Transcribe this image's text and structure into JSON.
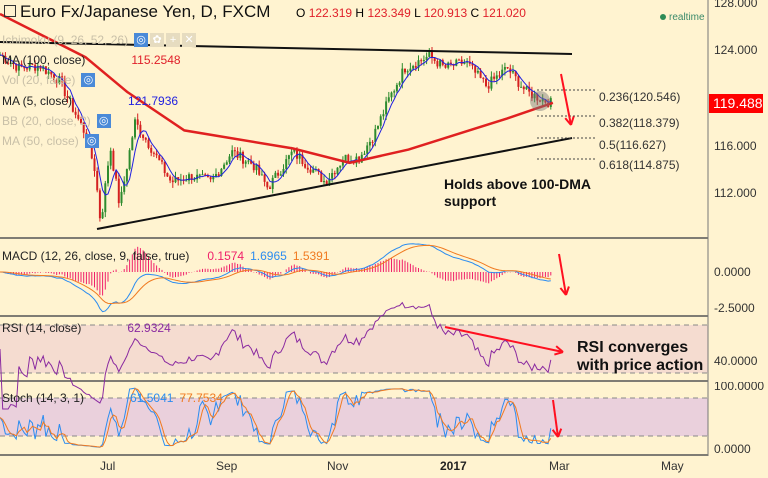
{
  "header": {
    "title": "Euro Fx/Japanese Yen, D, FXCM",
    "o_label": "O",
    "o": "122.319",
    "h_label": "H",
    "h": "123.349",
    "l_label": "L",
    "l": "120.913",
    "c_label": "C",
    "c": "121.020",
    "realtime": "realtime"
  },
  "indicators": {
    "ichimoku": "Ichimoku (9, 26, 52, 26)",
    "ma100": "MA (100, close)",
    "ma100_value": "115.2548",
    "vol": "Vol (20, false)",
    "ma5": "MA (5, close)",
    "ma5_value": "121.7936",
    "bb": "BB (20, close, 2)",
    "ma50": "MA (50, close)"
  },
  "price_axis": {
    "ticks": [
      "128.000",
      "124.000",
      "116.000",
      "112.000"
    ],
    "current": "119.488"
  },
  "fib": [
    "0.236(120.546)",
    "0.382(118.379)",
    "0.5(116.627)",
    "0.618(114.875)"
  ],
  "annotations": {
    "dma_line1": "Holds above 100-DMA",
    "dma_line2": "support",
    "rsi_line1": "RSI converges",
    "rsi_line2": "with price action"
  },
  "macd": {
    "label": "MACD (12, 26, close, 9, false, true)",
    "hist": "0.1574",
    "macd": "1.6965",
    "signal": "1.5391",
    "ticks": [
      "0.0000",
      "-2.5000"
    ]
  },
  "rsi": {
    "label": "RSI (14, close)",
    "value": "62.9324",
    "ticks": [
      "40.0000"
    ]
  },
  "stoch": {
    "label": "Stoch (14, 3, 1)",
    "k": "61.5041",
    "d": "77.7534",
    "ticks": [
      "100.0000",
      "0.0000"
    ]
  },
  "time_axis": [
    "Jul",
    "Sep",
    "Nov",
    "2017",
    "Mar",
    "May"
  ],
  "colors": {
    "bg": "#fff3d0",
    "up": "#2e8b2e",
    "down": "#d42020",
    "ma100": "#e02020",
    "ma5": "#2020e0",
    "macd": "#2b8cf0",
    "signal": "#f07a20",
    "rsi": "#8a2aa0",
    "current_price": "#ff0000"
  },
  "chart_data": {
    "type": "candlestick",
    "approx_closes": [
      [
        "2016-05-05",
        123.6
      ],
      [
        "2016-05-15",
        122.5
      ],
      [
        "2016-05-26",
        122.7
      ],
      [
        "2016-06-05",
        121.5
      ],
      [
        "2016-06-19",
        117
      ],
      [
        "2016-06-24",
        114
      ],
      [
        "2016-06-27",
        109.5
      ],
      [
        "2016-07-02",
        116
      ],
      [
        "2016-07-07",
        111
      ],
      [
        "2016-07-15",
        118
      ],
      [
        "2016-07-23",
        116
      ],
      [
        "2016-08-03",
        113
      ],
      [
        "2016-08-14",
        113.5
      ],
      [
        "2016-08-24",
        113
      ],
      [
        "2016-09-04",
        115.5
      ],
      [
        "2016-09-15",
        114.5
      ],
      [
        "2016-09-23",
        112.5
      ],
      [
        "2016-10-06",
        115.5
      ],
      [
        "2016-10-17",
        114
      ],
      [
        "2016-10-23",
        113
      ],
      [
        "2016-11-02",
        115
      ],
      [
        "2016-11-10",
        115
      ],
      [
        "2016-11-18",
        117
      ],
      [
        "2016-11-26",
        120
      ],
      [
        "2016-12-04",
        122.5
      ],
      [
        "2016-12-17",
        123.5
      ],
      [
        "2016-12-25",
        122.5
      ],
      [
        "2017-01-05",
        123
      ],
      [
        "2017-01-16",
        121
      ],
      [
        "2017-01-27",
        122.5
      ],
      [
        "2017-02-06",
        120.5
      ],
      [
        "2017-02-20",
        119.5
      ]
    ],
    "ma100_approx": [
      [
        "2016-05-05",
        127.0
      ],
      [
        "2016-06-19",
        123.4
      ],
      [
        "2016-07-11",
        120.5
      ],
      [
        "2016-08-10",
        117.3
      ],
      [
        "2016-10-06",
        115.8
      ],
      [
        "2016-11-05",
        114.6
      ],
      [
        "2016-12-06",
        115.7
      ],
      [
        "2017-01-27",
        118.3
      ],
      [
        "2017-02-20",
        119.6
      ]
    ],
    "ylim": [
      108,
      128
    ]
  }
}
